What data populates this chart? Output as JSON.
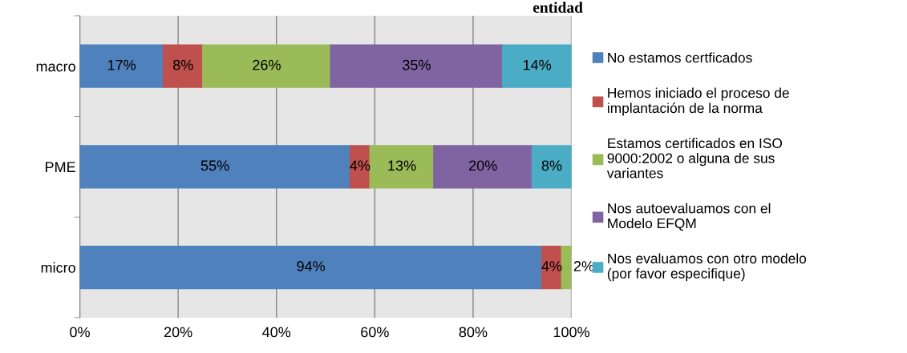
{
  "chart_data": {
    "type": "bar",
    "orientation": "horizontal",
    "stacked": true,
    "title": "entidad",
    "categories": [
      "macro",
      "PME",
      "micro"
    ],
    "series": [
      {
        "name": "No estamos certficados",
        "color": "#4f81bd",
        "values": [
          17,
          55,
          94
        ],
        "value_labels": [
          "17%",
          "55%",
          "94%"
        ]
      },
      {
        "name": "Hemos iniciado el proceso de implantación de la norma",
        "color": "#c0504d",
        "values": [
          8,
          4,
          4
        ],
        "value_labels": [
          "8%",
          "4%",
          "4%"
        ]
      },
      {
        "name": "Estamos certificados en ISO 9000:2002 o alguna de sus variantes",
        "color": "#9bbb59",
        "values": [
          26,
          13,
          2
        ],
        "value_labels": [
          "26%",
          "13%",
          "2%"
        ]
      },
      {
        "name": "Nos autoevaluamos con el Modelo EFQM",
        "color": "#8064a2",
        "values": [
          35,
          20,
          null
        ],
        "value_labels": [
          "35%",
          "20%",
          null
        ]
      },
      {
        "name": "Nos evaluamos con otro modelo (por favor especifique)",
        "color": "#4bacc6",
        "values": [
          14,
          8,
          null
        ],
        "value_labels": [
          "14%",
          "8%",
          null
        ]
      }
    ],
    "xlim": [
      0,
      100
    ],
    "xticks": [
      {
        "value": 0,
        "label": "0%"
      },
      {
        "value": 20,
        "label": "20%"
      },
      {
        "value": 40,
        "label": "40%"
      },
      {
        "value": 60,
        "label": "60%"
      },
      {
        "value": 80,
        "label": "80%"
      },
      {
        "value": 100,
        "label": "100%"
      }
    ],
    "grid": "x",
    "legend": "right"
  }
}
